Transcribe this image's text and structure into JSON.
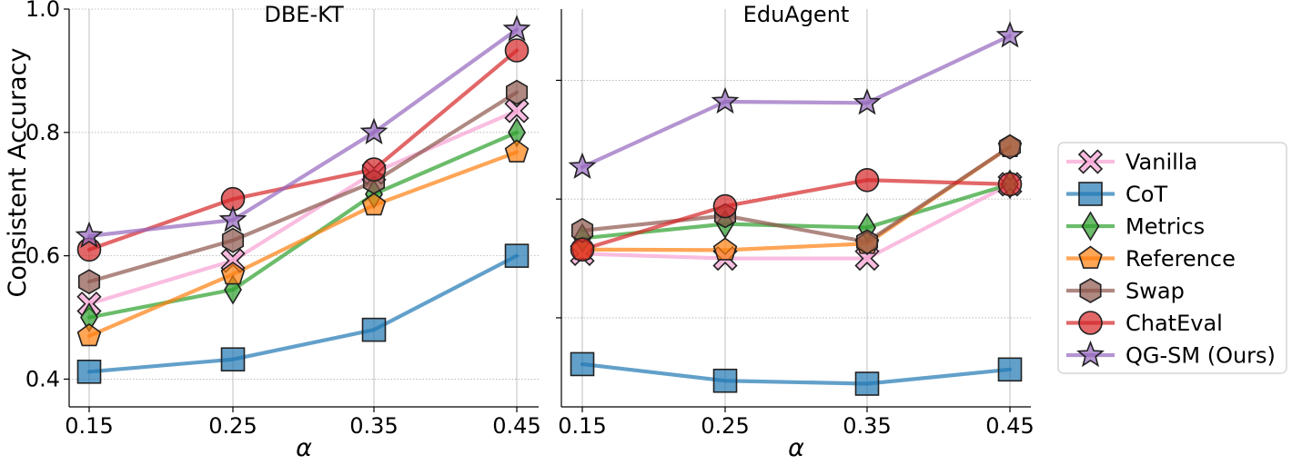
{
  "figure": {
    "ylabel": "Consistent Accuracy"
  },
  "legend": {
    "position": "right",
    "entries": [
      {
        "name": "Vanilla",
        "marker": "x-icon",
        "color": "#f7a1d3"
      },
      {
        "name": "CoT",
        "marker": "square-icon",
        "color": "#1f77b4"
      },
      {
        "name": "Metrics",
        "marker": "diamond-icon",
        "color": "#2ca02c"
      },
      {
        "name": "Reference",
        "marker": "pentagon-icon",
        "color": "#ff7f0e"
      },
      {
        "name": "Swap",
        "marker": "hexagon-icon",
        "color": "#8c564b"
      },
      {
        "name": "ChatEval",
        "marker": "circle-icon",
        "color": "#d62728"
      },
      {
        "name": "QG-SM (Ours)",
        "marker": "star-icon",
        "color": "#9467bd"
      }
    ]
  },
  "chart_data": [
    {
      "type": "line",
      "title": "DBE-KT",
      "xlabel": "α",
      "ylabel": "Consistent Accuracy",
      "x": [
        0.15,
        0.25,
        0.35,
        0.45
      ],
      "x_tick_labels": [
        "0.15",
        "0.25",
        "0.35",
        "0.45"
      ],
      "y_ticks": [
        0.4,
        0.6,
        0.8,
        1.0
      ],
      "y_tick_labels": [
        "0.4",
        "0.6",
        "0.8",
        "1.0"
      ],
      "xlim": [
        0.135,
        0.465
      ],
      "ylim": [
        0.355,
        1.0
      ],
      "grid": true,
      "series": [
        {
          "name": "Vanilla",
          "values": [
            0.522,
            0.592,
            0.735,
            0.835
          ]
        },
        {
          "name": "CoT",
          "values": [
            0.412,
            0.432,
            0.48,
            0.6
          ]
        },
        {
          "name": "Metrics",
          "values": [
            0.5,
            0.545,
            0.7,
            0.8
          ]
        },
        {
          "name": "Reference",
          "values": [
            0.47,
            0.57,
            0.682,
            0.768
          ]
        },
        {
          "name": "Swap",
          "values": [
            0.558,
            0.625,
            0.72,
            0.865
          ]
        },
        {
          "name": "ChatEval",
          "values": [
            0.61,
            0.692,
            0.74,
            0.933
          ]
        },
        {
          "name": "QG-SM (Ours)",
          "values": [
            0.632,
            0.658,
            0.8,
            0.967
          ]
        }
      ]
    },
    {
      "type": "line",
      "title": "EduAgent",
      "xlabel": "α",
      "ylabel": "",
      "x": [
        0.15,
        0.25,
        0.35,
        0.45
      ],
      "x_tick_labels": [
        "0.15",
        "0.25",
        "0.35",
        "0.45"
      ],
      "y_ticks": [
        0.4,
        0.6,
        0.8,
        1.0
      ],
      "y_tick_labels": [],
      "xlim": [
        0.135,
        0.465
      ],
      "ylim": [
        0.25,
        0.92
      ],
      "grid": true,
      "series": [
        {
          "name": "Vanilla",
          "values": [
            0.508,
            0.5,
            0.5,
            0.625
          ]
        },
        {
          "name": "CoT",
          "values": [
            0.322,
            0.294,
            0.289,
            0.313
          ]
        },
        {
          "name": "Metrics",
          "values": [
            0.534,
            0.558,
            0.552,
            0.625
          ]
        },
        {
          "name": "Reference",
          "values": [
            0.515,
            0.514,
            0.525,
            0.688
          ]
        },
        {
          "name": "Swap",
          "values": [
            0.547,
            0.572,
            0.528,
            0.688
          ]
        },
        {
          "name": "ChatEval",
          "values": [
            0.515,
            0.588,
            0.632,
            0.625
          ]
        },
        {
          "name": "QG-SM (Ours)",
          "values": [
            0.654,
            0.764,
            0.762,
            0.875
          ]
        }
      ]
    }
  ]
}
